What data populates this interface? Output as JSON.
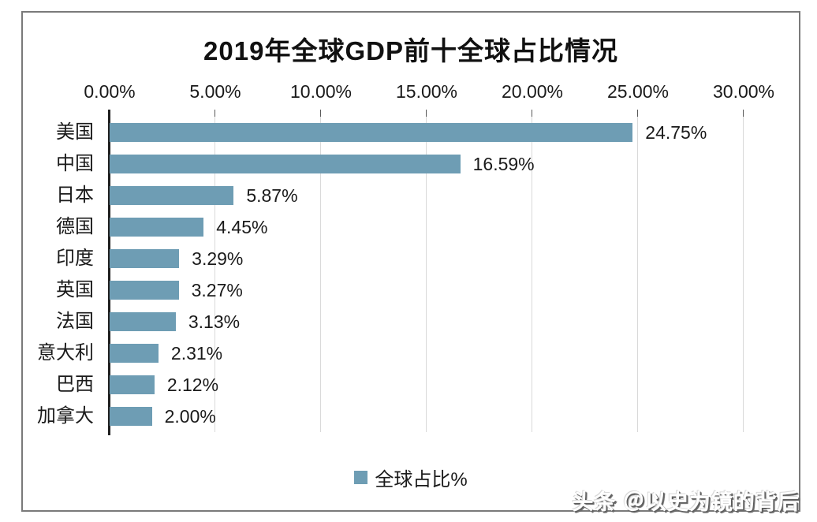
{
  "page": {
    "background": "#ffffff"
  },
  "chart_data": {
    "type": "bar",
    "orientation": "horizontal",
    "title": "2019年全球GDP前十全球占比情况",
    "categories": [
      "美国",
      "中国",
      "日本",
      "德国",
      "印度",
      "英国",
      "法国",
      "意大利",
      "巴西",
      "加拿大"
    ],
    "values": [
      24.75,
      16.59,
      5.87,
      4.45,
      3.29,
      3.27,
      3.13,
      2.31,
      2.12,
      2.0
    ],
    "value_labels": [
      "24.75%",
      "16.59%",
      "5.87%",
      "4.45%",
      "3.29%",
      "3.27%",
      "3.13%",
      "2.31%",
      "2.12%",
      "2.00%"
    ],
    "xlabel": "",
    "ylabel": "",
    "axis": {
      "side": "top",
      "min": 0,
      "max": 30,
      "step": 5,
      "tick_labels": [
        "0.00%",
        "5.00%",
        "10.00%",
        "15.00%",
        "20.00%",
        "25.00%",
        "30.00%"
      ]
    },
    "grid": true,
    "legend": {
      "label": "全球占比%",
      "position": "bottom-center"
    },
    "colors": {
      "bar": "#6E9DB4",
      "gridline": "#D9D9D9",
      "axis_line": "#1F1F1F",
      "tick": "#595959",
      "text": "#1A1A1A",
      "frame_border": "#7A7A7A"
    }
  },
  "watermark": {
    "text": "头条 ＠以史为镜的背后"
  }
}
